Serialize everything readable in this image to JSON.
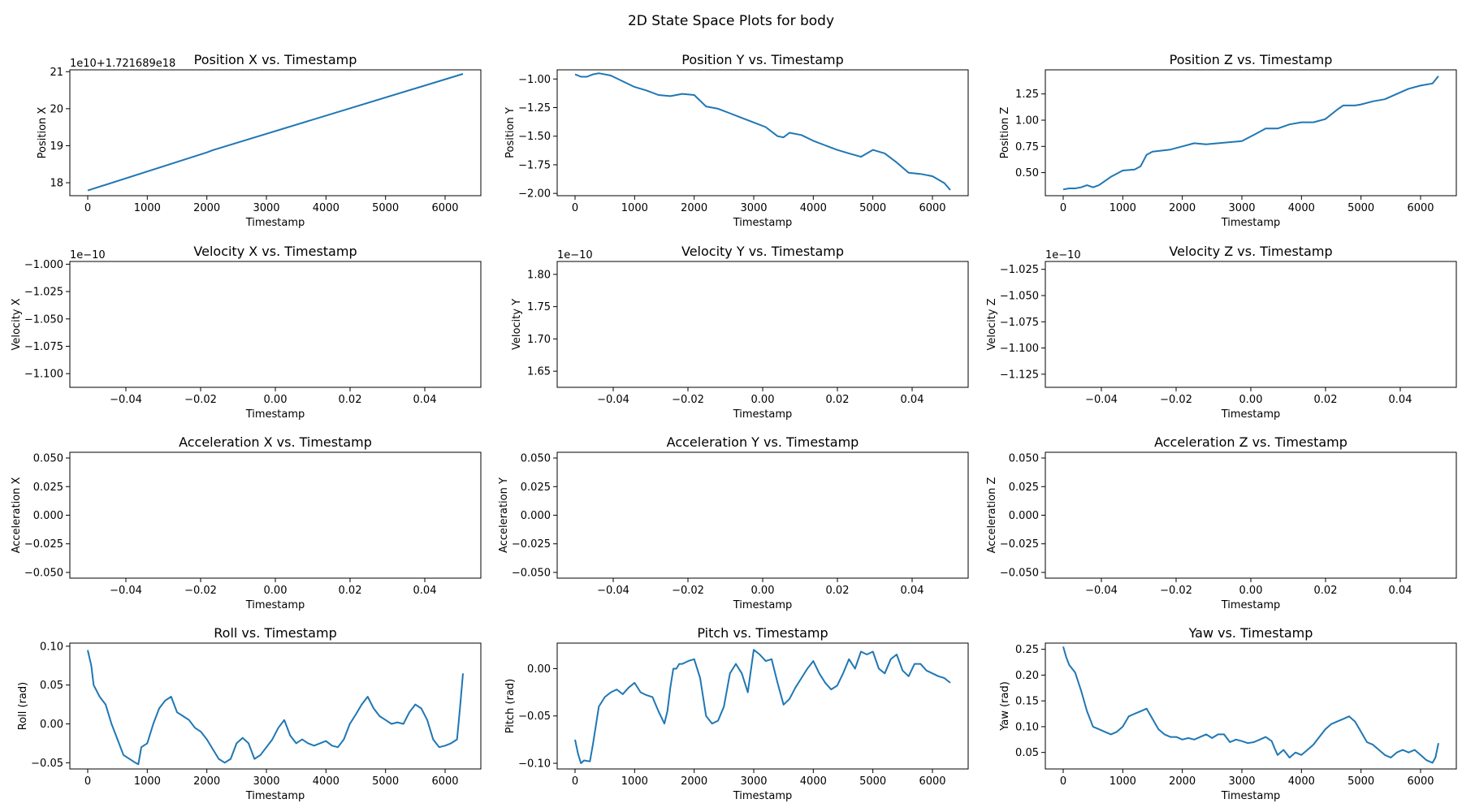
{
  "figure_title": "2D State Space Plots for body",
  "line_color": "#1f77b4",
  "chart_data": [
    {
      "type": "line",
      "title": "Position X vs. Timestamp",
      "xlabel": "Timestamp",
      "ylabel": "Position X",
      "offset_text": "1e10+1.721689e18",
      "xlim": [
        -300,
        6600
      ],
      "ylim": [
        17.65,
        21.05
      ],
      "xticks": [
        0,
        1000,
        2000,
        3000,
        4000,
        5000,
        6000
      ],
      "xtick_labels": [
        "0",
        "1000",
        "2000",
        "3000",
        "4000",
        "5000",
        "6000"
      ],
      "yticks": [
        18,
        19,
        20,
        21
      ],
      "ytick_labels": [
        "18",
        "19",
        "20",
        "21"
      ],
      "series": [
        {
          "x": [
            0,
            2000,
            2100,
            6300
          ],
          "y": [
            17.79,
            18.82,
            18.88,
            20.94
          ]
        }
      ]
    },
    {
      "type": "line",
      "title": "Position Y vs. Timestamp",
      "xlabel": "Timestamp",
      "ylabel": "Position Y",
      "xlim": [
        -300,
        6600
      ],
      "ylim": [
        -2.02,
        -0.92
      ],
      "xticks": [
        0,
        1000,
        2000,
        3000,
        4000,
        5000,
        6000
      ],
      "xtick_labels": [
        "0",
        "1000",
        "2000",
        "3000",
        "4000",
        "5000",
        "6000"
      ],
      "yticks": [
        -2.0,
        -1.75,
        -1.5,
        -1.25,
        -1.0
      ],
      "ytick_labels": [
        "−2.00",
        "−1.75",
        "−1.50",
        "−1.25",
        "−1.00"
      ],
      "series": [
        {
          "x": [
            0,
            100,
            200,
            300,
            400,
            600,
            800,
            1000,
            1200,
            1400,
            1600,
            1800,
            2000,
            2200,
            2400,
            2600,
            2800,
            3000,
            3200,
            3400,
            3500,
            3600,
            3800,
            4000,
            4200,
            4400,
            4600,
            4800,
            5000,
            5200,
            5400,
            5600,
            5800,
            6000,
            6200,
            6300
          ],
          "y": [
            -0.96,
            -0.98,
            -0.98,
            -0.96,
            -0.95,
            -0.97,
            -1.02,
            -1.07,
            -1.1,
            -1.14,
            -1.15,
            -1.13,
            -1.14,
            -1.24,
            -1.26,
            -1.3,
            -1.34,
            -1.38,
            -1.42,
            -1.5,
            -1.51,
            -1.47,
            -1.49,
            -1.54,
            -1.58,
            -1.62,
            -1.65,
            -1.68,
            -1.62,
            -1.65,
            -1.73,
            -1.82,
            -1.83,
            -1.85,
            -1.91,
            -1.97
          ]
        }
      ]
    },
    {
      "type": "line",
      "title": "Position Z vs. Timestamp",
      "xlabel": "Timestamp",
      "ylabel": "Position Z",
      "xlim": [
        -300,
        6600
      ],
      "ylim": [
        0.28,
        1.48
      ],
      "xticks": [
        0,
        1000,
        2000,
        3000,
        4000,
        5000,
        6000
      ],
      "xtick_labels": [
        "0",
        "1000",
        "2000",
        "3000",
        "4000",
        "5000",
        "6000"
      ],
      "yticks": [
        0.5,
        0.75,
        1.0,
        1.25
      ],
      "ytick_labels": [
        "0.50",
        "0.75",
        "1.00",
        "1.25"
      ],
      "series": [
        {
          "x": [
            0,
            100,
            200,
            300,
            400,
            500,
            600,
            800,
            1000,
            1200,
            1300,
            1400,
            1500,
            1800,
            2000,
            2200,
            2400,
            2600,
            3000,
            3200,
            3400,
            3600,
            3800,
            4000,
            4200,
            4400,
            4600,
            4700,
            4900,
            5000,
            5200,
            5400,
            5600,
            5800,
            6000,
            6200,
            6300
          ],
          "y": [
            0.34,
            0.35,
            0.35,
            0.36,
            0.38,
            0.36,
            0.38,
            0.46,
            0.52,
            0.53,
            0.56,
            0.67,
            0.7,
            0.72,
            0.75,
            0.78,
            0.77,
            0.78,
            0.8,
            0.86,
            0.92,
            0.92,
            0.96,
            0.98,
            0.98,
            1.01,
            1.1,
            1.14,
            1.14,
            1.15,
            1.18,
            1.2,
            1.25,
            1.3,
            1.33,
            1.35,
            1.42
          ]
        }
      ]
    },
    {
      "type": "line",
      "title": "Velocity X vs. Timestamp",
      "xlabel": "Timestamp",
      "ylabel": "Velocity X",
      "offset_text": "1e−10",
      "xlim": [
        -0.055,
        0.055
      ],
      "ylim": [
        -1.1125,
        -0.9975
      ],
      "xticks": [
        -0.04,
        -0.02,
        0,
        0.02,
        0.04
      ],
      "xtick_labels": [
        "−0.04",
        "−0.02",
        "0.00",
        "0.02",
        "0.04"
      ],
      "yticks": [
        -1.1,
        -1.075,
        -1.05,
        -1.025,
        -1.0
      ],
      "ytick_labels": [
        "−1.100",
        "−1.075",
        "−1.050",
        "−1.025",
        "−1.000"
      ],
      "series": []
    },
    {
      "type": "line",
      "title": "Velocity Y vs. Timestamp",
      "xlabel": "Timestamp",
      "ylabel": "Velocity Y",
      "offset_text": "1e−10",
      "xlim": [
        -0.055,
        0.055
      ],
      "ylim": [
        1.625,
        1.82
      ],
      "xticks": [
        -0.04,
        -0.02,
        0,
        0.02,
        0.04
      ],
      "xtick_labels": [
        "−0.04",
        "−0.02",
        "0.00",
        "0.02",
        "0.04"
      ],
      "yticks": [
        1.65,
        1.7,
        1.75,
        1.8
      ],
      "ytick_labels": [
        "1.65",
        "1.70",
        "1.75",
        "1.80"
      ],
      "series": []
    },
    {
      "type": "line",
      "title": "Velocity Z vs. Timestamp",
      "xlabel": "Timestamp",
      "ylabel": "Velocity Z",
      "offset_text": "1e−10",
      "xlim": [
        -0.055,
        0.055
      ],
      "ylim": [
        -1.1375,
        -1.0175
      ],
      "xticks": [
        -0.04,
        -0.02,
        0,
        0.02,
        0.04
      ],
      "xtick_labels": [
        "−0.04",
        "−0.02",
        "0.00",
        "0.02",
        "0.04"
      ],
      "yticks": [
        -1.125,
        -1.1,
        -1.075,
        -1.05,
        -1.025
      ],
      "ytick_labels": [
        "−1.125",
        "−1.100",
        "−1.075",
        "−1.050",
        "−1.025"
      ],
      "series": []
    },
    {
      "type": "line",
      "title": "Acceleration X vs. Timestamp",
      "xlabel": "Timestamp",
      "ylabel": "Acceleration X",
      "xlim": [
        -0.055,
        0.055
      ],
      "ylim": [
        -0.055,
        0.055
      ],
      "xticks": [
        -0.04,
        -0.02,
        0,
        0.02,
        0.04
      ],
      "xtick_labels": [
        "−0.04",
        "−0.02",
        "0.00",
        "0.02",
        "0.04"
      ],
      "yticks": [
        -0.05,
        -0.025,
        0,
        0.025,
        0.05
      ],
      "ytick_labels": [
        "−0.050",
        "−0.025",
        "0.000",
        "0.025",
        "0.050"
      ],
      "series": []
    },
    {
      "type": "line",
      "title": "Acceleration Y vs. Timestamp",
      "xlabel": "Timestamp",
      "ylabel": "Acceleration Y",
      "xlim": [
        -0.055,
        0.055
      ],
      "ylim": [
        -0.055,
        0.055
      ],
      "xticks": [
        -0.04,
        -0.02,
        0,
        0.02,
        0.04
      ],
      "xtick_labels": [
        "−0.04",
        "−0.02",
        "0.00",
        "0.02",
        "0.04"
      ],
      "yticks": [
        -0.05,
        -0.025,
        0,
        0.025,
        0.05
      ],
      "ytick_labels": [
        "−0.050",
        "−0.025",
        "0.000",
        "0.025",
        "0.050"
      ],
      "series": []
    },
    {
      "type": "line",
      "title": "Acceleration Z vs. Timestamp",
      "xlabel": "Timestamp",
      "ylabel": "Acceleration Z",
      "xlim": [
        -0.055,
        0.055
      ],
      "ylim": [
        -0.055,
        0.055
      ],
      "xticks": [
        -0.04,
        -0.02,
        0,
        0.02,
        0.04
      ],
      "xtick_labels": [
        "−0.04",
        "−0.02",
        "0.00",
        "0.02",
        "0.04"
      ],
      "yticks": [
        -0.05,
        -0.025,
        0,
        0.025,
        0.05
      ],
      "ytick_labels": [
        "−0.050",
        "−0.025",
        "0.000",
        "0.025",
        "0.050"
      ],
      "series": []
    },
    {
      "type": "line",
      "title": "Roll vs. Timestamp",
      "xlabel": "Timestamp",
      "ylabel": "Roll (rad)",
      "xlim": [
        -300,
        6600
      ],
      "ylim": [
        -0.058,
        0.104
      ],
      "xticks": [
        0,
        1000,
        2000,
        3000,
        4000,
        5000,
        6000
      ],
      "xtick_labels": [
        "0",
        "1000",
        "2000",
        "3000",
        "4000",
        "5000",
        "6000"
      ],
      "yticks": [
        -0.05,
        0,
        0.05,
        0.1
      ],
      "ytick_labels": [
        "−0.05",
        "0.00",
        "0.05",
        "0.10"
      ],
      "series": [
        {
          "x": [
            0,
            30,
            60,
            100,
            200,
            300,
            400,
            500,
            600,
            700,
            800,
            850,
            900,
            1000,
            1100,
            1200,
            1300,
            1400,
            1500,
            1600,
            1700,
            1800,
            1900,
            2000,
            2200,
            2300,
            2400,
            2500,
            2600,
            2700,
            2800,
            2900,
            3000,
            3100,
            3200,
            3300,
            3400,
            3500,
            3600,
            3700,
            3800,
            3900,
            4000,
            4100,
            4200,
            4300,
            4400,
            4500,
            4600,
            4700,
            4800,
            4900,
            5000,
            5100,
            5200,
            5300,
            5400,
            5500,
            5600,
            5700,
            5800,
            5900,
            6000,
            6100,
            6200,
            6250,
            6300
          ],
          "y": [
            0.095,
            0.085,
            0.075,
            0.05,
            0.035,
            0.025,
            0.0,
            -0.02,
            -0.04,
            -0.045,
            -0.05,
            -0.052,
            -0.03,
            -0.025,
            0.0,
            0.02,
            0.03,
            0.035,
            0.015,
            0.01,
            0.005,
            -0.005,
            -0.01,
            -0.02,
            -0.045,
            -0.05,
            -0.045,
            -0.025,
            -0.018,
            -0.025,
            -0.045,
            -0.04,
            -0.03,
            -0.02,
            -0.005,
            0.005,
            -0.015,
            -0.025,
            -0.02,
            -0.025,
            -0.028,
            -0.025,
            -0.022,
            -0.028,
            -0.03,
            -0.02,
            0.0,
            0.012,
            0.025,
            0.035,
            0.02,
            0.01,
            0.005,
            0.0,
            0.002,
            0.0,
            0.015,
            0.025,
            0.02,
            0.005,
            -0.02,
            -0.03,
            -0.028,
            -0.025,
            -0.02,
            0.02,
            0.065
          ]
        }
      ]
    },
    {
      "type": "line",
      "title": "Pitch vs. Timestamp",
      "xlabel": "Timestamp",
      "ylabel": "Pitch (rad)",
      "xlim": [
        -300,
        6600
      ],
      "ylim": [
        -0.106,
        0.027
      ],
      "xticks": [
        0,
        1000,
        2000,
        3000,
        4000,
        5000,
        6000
      ],
      "xtick_labels": [
        "0",
        "1000",
        "2000",
        "3000",
        "4000",
        "5000",
        "6000"
      ],
      "yticks": [
        -0.1,
        -0.05,
        0.0
      ],
      "ytick_labels": [
        "−0.10",
        "−0.05",
        "0.00"
      ],
      "series": [
        {
          "x": [
            0,
            50,
            100,
            150,
            250,
            300,
            400,
            500,
            600,
            700,
            800,
            900,
            1000,
            1100,
            1200,
            1300,
            1400,
            1500,
            1550,
            1600,
            1650,
            1700,
            1750,
            1800,
            1900,
            2000,
            2100,
            2200,
            2300,
            2400,
            2500,
            2600,
            2700,
            2800,
            2900,
            3000,
            3100,
            3200,
            3300,
            3400,
            3500,
            3600,
            3700,
            3800,
            3900,
            4000,
            4100,
            4200,
            4300,
            4400,
            4500,
            4600,
            4700,
            4800,
            4900,
            5000,
            5100,
            5200,
            5300,
            5400,
            5500,
            5600,
            5700,
            5800,
            5900,
            6000,
            6100,
            6200,
            6300
          ],
          "y": [
            -0.075,
            -0.09,
            -0.1,
            -0.097,
            -0.098,
            -0.08,
            -0.04,
            -0.03,
            -0.025,
            -0.022,
            -0.027,
            -0.02,
            -0.015,
            -0.025,
            -0.028,
            -0.03,
            -0.045,
            -0.058,
            -0.045,
            -0.02,
            0.0,
            0.0,
            0.005,
            0.005,
            0.008,
            0.01,
            -0.01,
            -0.05,
            -0.058,
            -0.055,
            -0.04,
            -0.005,
            0.005,
            -0.005,
            -0.025,
            0.02,
            0.015,
            0.008,
            0.01,
            -0.015,
            -0.038,
            -0.032,
            -0.02,
            -0.01,
            0.0,
            0.008,
            -0.005,
            -0.015,
            -0.022,
            -0.018,
            -0.005,
            0.01,
            0.0,
            0.018,
            0.015,
            0.018,
            0.0,
            -0.005,
            0.01,
            0.015,
            -0.002,
            -0.008,
            0.005,
            0.005,
            -0.002,
            -0.005,
            -0.008,
            -0.01,
            -0.015
          ]
        }
      ]
    },
    {
      "type": "line",
      "title": "Yaw vs. Timestamp",
      "xlabel": "Timestamp",
      "ylabel": "Yaw (rad)",
      "xlim": [
        -300,
        6600
      ],
      "ylim": [
        0.018,
        0.262
      ],
      "xticks": [
        0,
        1000,
        2000,
        3000,
        4000,
        5000,
        6000
      ],
      "xtick_labels": [
        "0",
        "1000",
        "2000",
        "3000",
        "4000",
        "5000",
        "6000"
      ],
      "yticks": [
        0.05,
        0.1,
        0.15,
        0.2,
        0.25
      ],
      "ytick_labels": [
        "0.05",
        "0.10",
        "0.15",
        "0.20",
        "0.25"
      ],
      "series": [
        {
          "x": [
            0,
            50,
            100,
            200,
            300,
            400,
            500,
            600,
            700,
            800,
            900,
            1000,
            1100,
            1200,
            1300,
            1400,
            1500,
            1600,
            1700,
            1800,
            1900,
            2000,
            2100,
            2200,
            2300,
            2400,
            2500,
            2600,
            2700,
            2800,
            2900,
            3000,
            3100,
            3200,
            3300,
            3400,
            3500,
            3550,
            3600,
            3700,
            3800,
            3900,
            4000,
            4100,
            4200,
            4300,
            4400,
            4500,
            4600,
            4700,
            4800,
            4900,
            5000,
            5100,
            5200,
            5300,
            5400,
            5500,
            5600,
            5700,
            5800,
            5900,
            6000,
            6100,
            6200,
            6250,
            6300
          ],
          "y": [
            0.255,
            0.235,
            0.22,
            0.205,
            0.17,
            0.13,
            0.1,
            0.095,
            0.09,
            0.085,
            0.09,
            0.1,
            0.12,
            0.125,
            0.13,
            0.135,
            0.115,
            0.095,
            0.085,
            0.08,
            0.08,
            0.075,
            0.078,
            0.075,
            0.08,
            0.085,
            0.078,
            0.085,
            0.085,
            0.07,
            0.075,
            0.072,
            0.068,
            0.07,
            0.075,
            0.08,
            0.072,
            0.058,
            0.045,
            0.055,
            0.04,
            0.05,
            0.045,
            0.055,
            0.065,
            0.08,
            0.095,
            0.105,
            0.11,
            0.115,
            0.12,
            0.11,
            0.09,
            0.07,
            0.065,
            0.055,
            0.045,
            0.04,
            0.05,
            0.055,
            0.05,
            0.055,
            0.045,
            0.035,
            0.03,
            0.04,
            0.068
          ]
        }
      ]
    }
  ]
}
